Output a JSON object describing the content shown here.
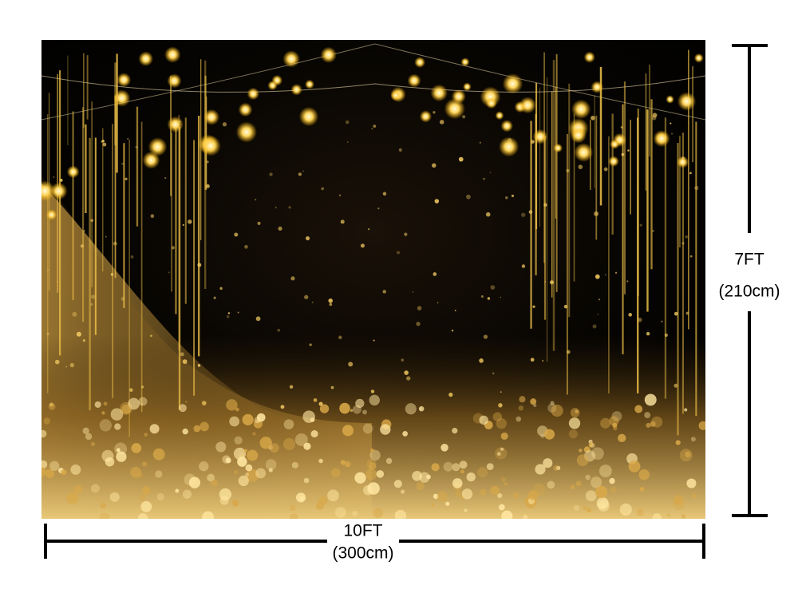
{
  "dimensions": {
    "height": {
      "label": "7FT",
      "sublabel": "(210cm)"
    },
    "width": {
      "label": "10FT",
      "sublabel": "(300cm)"
    }
  }
}
